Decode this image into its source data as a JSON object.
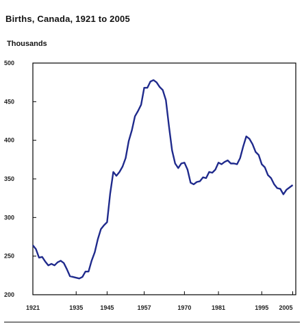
{
  "chart_data": {
    "type": "line",
    "title": "Births, Canada, 1921 to 2005",
    "xlabel": "",
    "ylabel": "Thousands",
    "xlim": [
      1921,
      2006
    ],
    "ylim": [
      200,
      500
    ],
    "x_ticks": [
      "1921",
      "1935",
      "1945",
      "1957",
      "1970",
      "1981",
      "1995",
      "2005"
    ],
    "x_tick_years": [
      1921,
      1935,
      1945,
      1957,
      1970,
      1981,
      1995,
      2005
    ],
    "y_ticks": [
      "200",
      "250",
      "300",
      "350",
      "400",
      "450",
      "500"
    ],
    "y_tick_values": [
      200,
      250,
      300,
      350,
      400,
      450,
      500
    ],
    "grid": false,
    "legend": "none",
    "line_color": "#1f2a8c",
    "series": [
      {
        "x": [
          1921,
          1922,
          1923,
          1924,
          1925,
          1926,
          1927,
          1928,
          1929,
          1930,
          1931,
          1932,
          1933,
          1934,
          1935,
          1936,
          1937,
          1938,
          1939,
          1940,
          1941,
          1942,
          1943,
          1944,
          1945,
          1946,
          1947,
          1948,
          1949,
          1950,
          1951,
          1952,
          1953,
          1954,
          1955,
          1956,
          1957,
          1958,
          1959,
          1960,
          1961,
          1962,
          1963,
          1964,
          1965,
          1966,
          1967,
          1968,
          1969,
          1970,
          1971,
          1972,
          1973,
          1974,
          1975,
          1976,
          1977,
          1978,
          1979,
          1980,
          1981,
          1982,
          1983,
          1984,
          1985,
          1986,
          1987,
          1988,
          1989,
          1990,
          1991,
          1992,
          1993,
          1994,
          1995,
          1996,
          1997,
          1998,
          1999,
          2000,
          2001,
          2002,
          2003,
          2004,
          2005
        ],
        "values": [
          264,
          259,
          248,
          249,
          243,
          238,
          240,
          238,
          242,
          244,
          241,
          233,
          224,
          223,
          222,
          221,
          223,
          230,
          230,
          244,
          255,
          272,
          285,
          290,
          294,
          331,
          359,
          354,
          359,
          366,
          377,
          399,
          413,
          431,
          438,
          446,
          468,
          468,
          476,
          478,
          475,
          469,
          465,
          452,
          418,
          387,
          370,
          364,
          370,
          371,
          362,
          345,
          343,
          346,
          347,
          352,
          351,
          359,
          358,
          362,
          371,
          369,
          372,
          374,
          370,
          370,
          369,
          377,
          392,
          405,
          402,
          395,
          385,
          381,
          369,
          365,
          355,
          351,
          343,
          338,
          337,
          330,
          336,
          339,
          342
        ]
      }
    ]
  }
}
